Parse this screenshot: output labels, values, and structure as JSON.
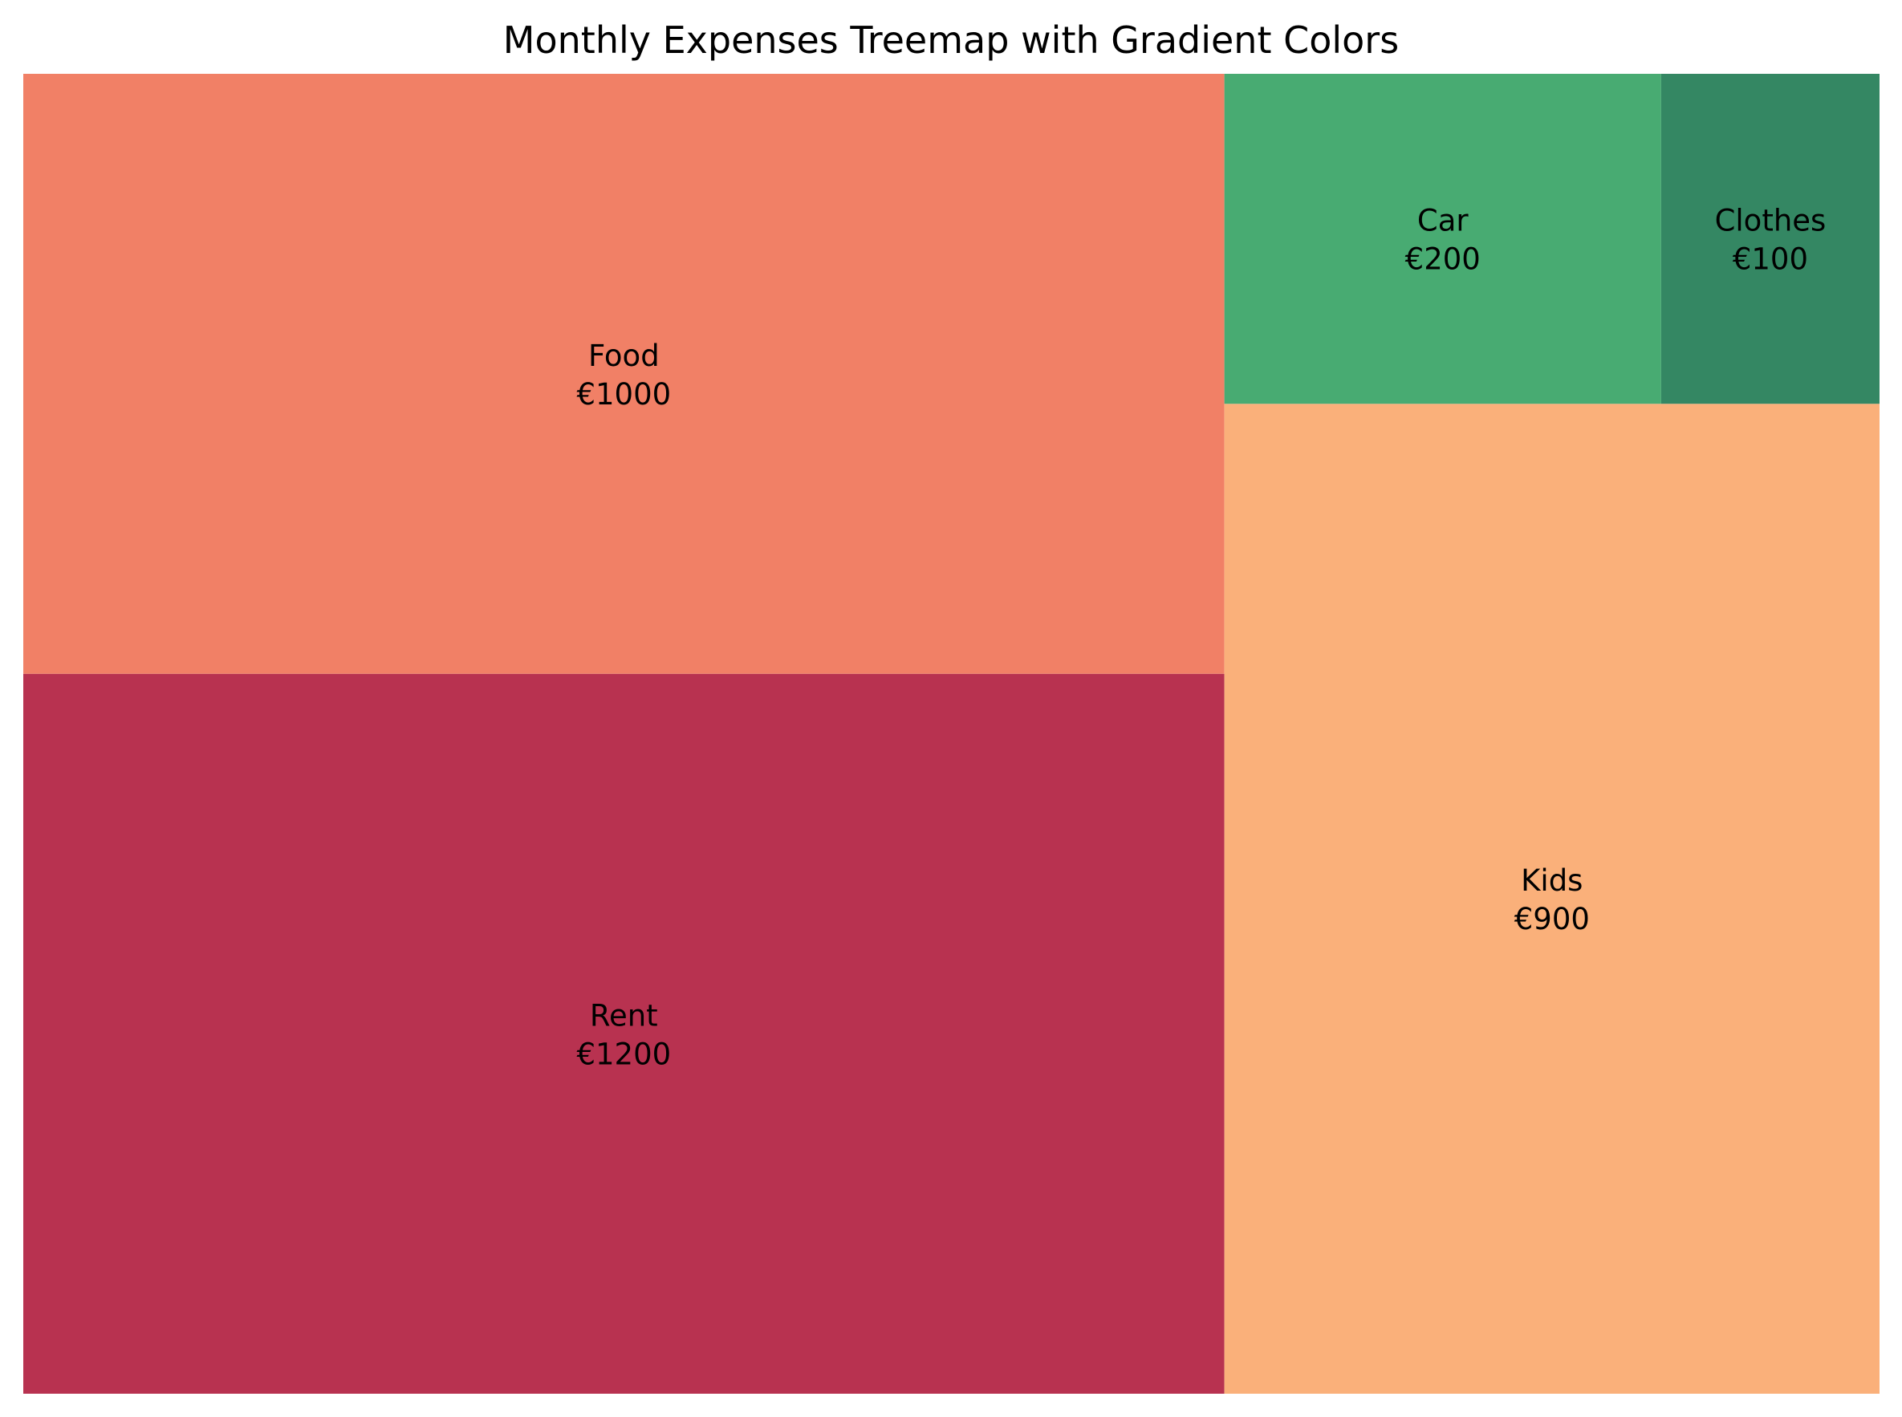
{
  "chart_data": {
    "type": "treemap",
    "title": "Monthly Expenses Treemap with Gradient Colors",
    "currency_symbol": "€",
    "items": [
      {
        "label": "Rent",
        "value": 1200,
        "value_label": "€1200",
        "color": "#b83250"
      },
      {
        "label": "Food",
        "value": 1000,
        "value_label": "€1000",
        "color": "#f18066"
      },
      {
        "label": "Kids",
        "value": 900,
        "value_label": "€900",
        "color": "#fab07a"
      },
      {
        "label": "Car",
        "value": 200,
        "value_label": "€200",
        "color": "#48ab72"
      },
      {
        "label": "Clothes",
        "value": 100,
        "value_label": "€100",
        "color": "#348763"
      }
    ]
  }
}
